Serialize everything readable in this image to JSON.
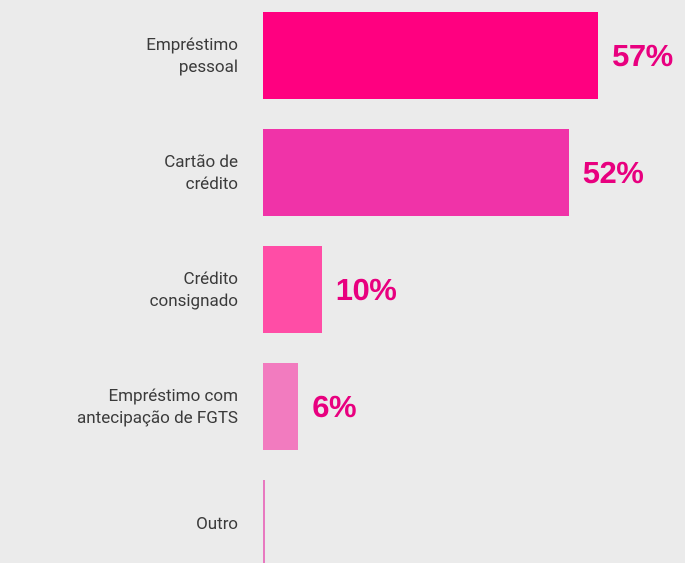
{
  "chart_data": {
    "type": "bar",
    "orientation": "horizontal",
    "categories": [
      "Empréstimo\npessoal",
      "Cartão de\ncrédito",
      "Crédito\nconsignado",
      "Empréstimo com\nantecipação de FGTS",
      "Outro"
    ],
    "values": [
      57,
      52,
      10,
      6,
      0.3
    ],
    "value_labels": [
      "57%",
      "52%",
      "10%",
      "6%",
      null
    ],
    "colors": [
      "#ff0080",
      "#f033a8",
      "#ff4da6",
      "#f27bbf",
      "#e879c0"
    ]
  }
}
